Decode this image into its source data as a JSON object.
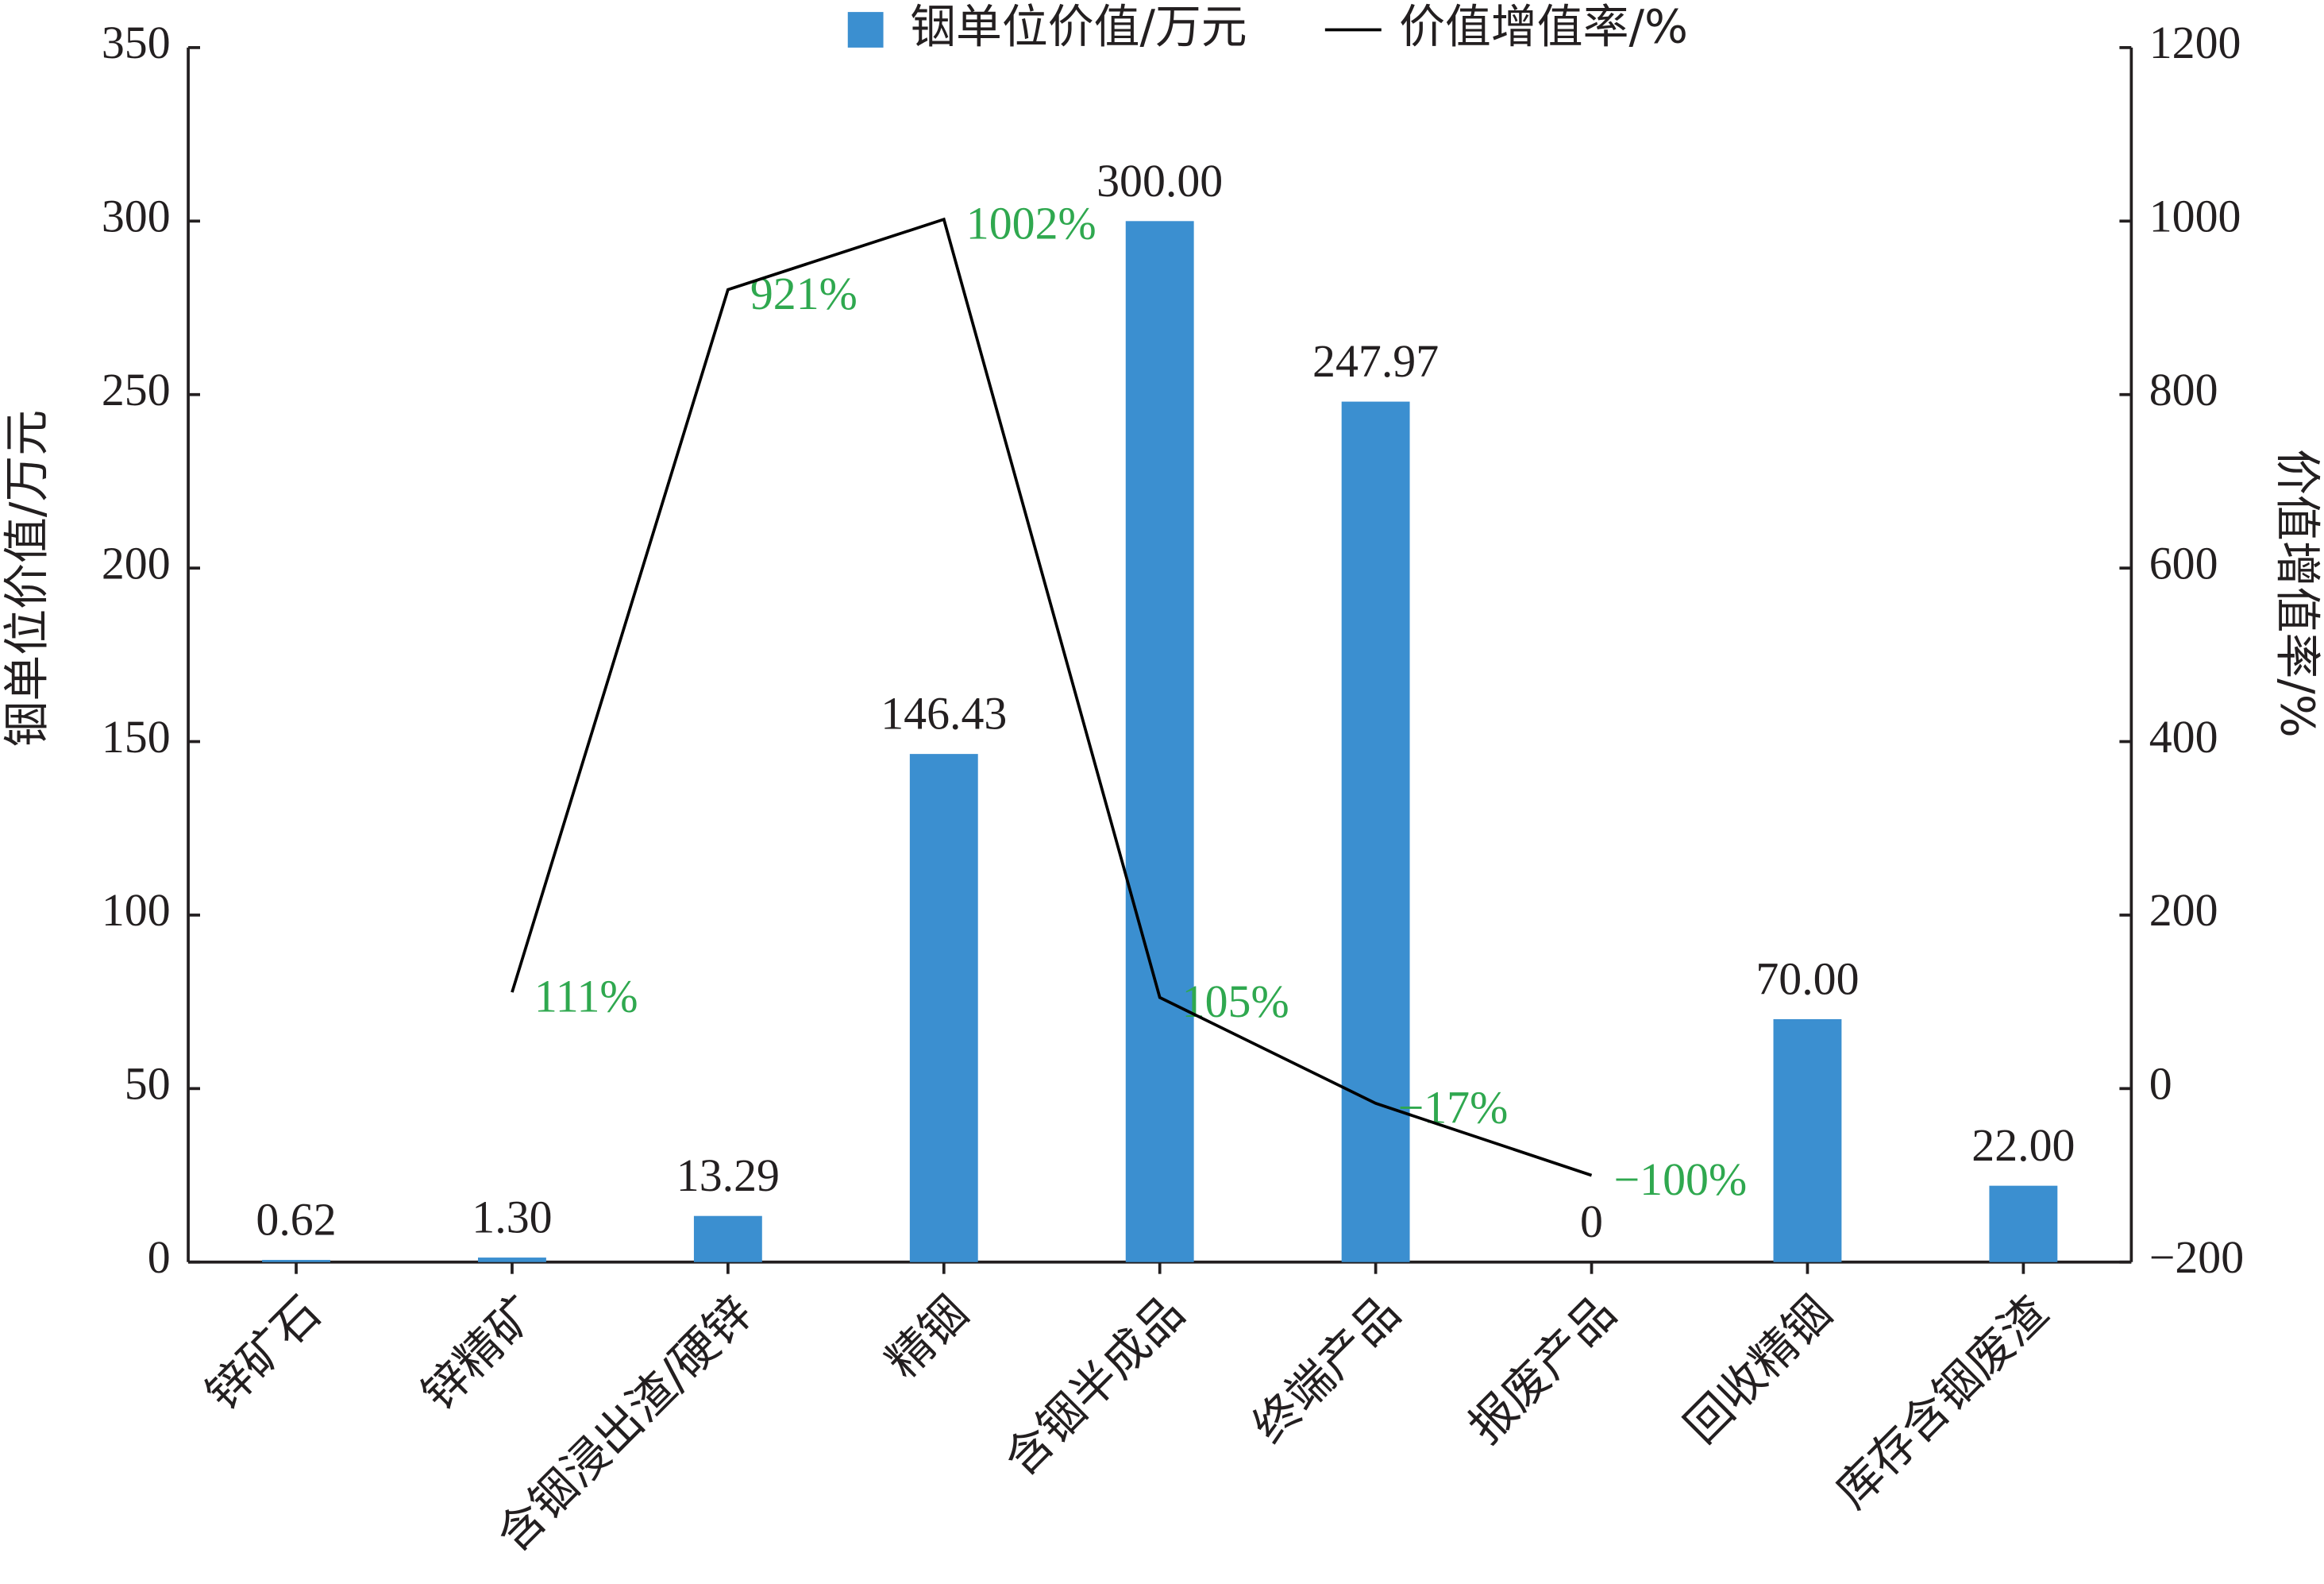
{
  "chart_data": {
    "type": "bar",
    "categories": [
      "锌矿石",
      "锌精矿",
      "含铟浸出渣/硬锌",
      "精铟",
      "含铟半成品",
      "终端产品",
      "报废产品",
      "回收精铟",
      "库存含铟废渣"
    ],
    "y_label": "铟单位价值/万元",
    "y2_label": "价值增值率/%",
    "ylim": [
      0,
      350
    ],
    "yticks": [
      0,
      50,
      100,
      150,
      200,
      250,
      300,
      350
    ],
    "y2lim": [
      -200,
      1200
    ],
    "y2ticks": [
      {
        "value": -200,
        "label": "−200"
      },
      0,
      200,
      400,
      600,
      800,
      1000,
      1200
    ],
    "legend": "top",
    "series": [
      {
        "name": "铟单位价值/万元",
        "type": "bar",
        "color": "#3b8fd0",
        "values": [
          0.62,
          1.3,
          13.29,
          146.43,
          300,
          247.97,
          0,
          70,
          22
        ],
        "value_labels": [
          "0.62",
          "1.30",
          "13.29",
          "146.43",
          "300.00",
          "247.97",
          "0",
          "70.00",
          "22.00"
        ]
      },
      {
        "name": "价值增值率/%",
        "type": "line",
        "axis": "y2",
        "color": "#000000",
        "label_color": "#2fa84f",
        "values": [
          null,
          111,
          921,
          1002,
          105,
          -17,
          -100,
          null,
          null
        ],
        "value_labels": [
          null,
          "111%",
          "921%",
          "1002%",
          "105%",
          "−17%",
          "−100%",
          null,
          null
        ]
      }
    ]
  }
}
